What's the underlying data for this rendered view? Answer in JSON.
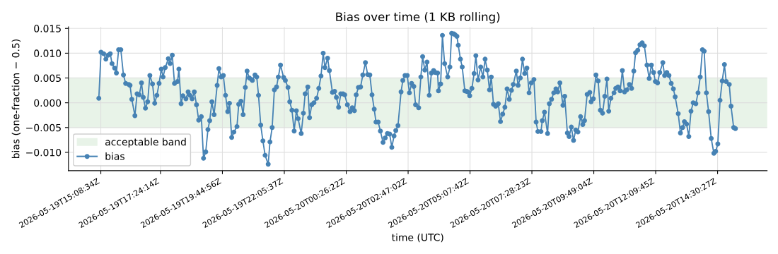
{
  "chart_data": {
    "type": "line",
    "title": "Bias over time (1 KB rolling)",
    "xlabel": "time (UTC)",
    "ylabel": "bias (one-fraction − 0.5)",
    "xlim": [
      "2026-05-19T13:55",
      "2026-05-20T16:23"
    ],
    "ylim": [
      -0.0137,
      0.0153
    ],
    "xticks": [
      {
        "value": "2026-05-19T15:08:34",
        "label": "2026-05-19T15:08:34Z"
      },
      {
        "value": "2026-05-19T17:24:14",
        "label": "2026-05-19T17:24:14Z"
      },
      {
        "value": "2026-05-19T19:44:56",
        "label": "2026-05-19T19:44:56Z"
      },
      {
        "value": "2026-05-19T22:05:37",
        "label": "2026-05-19T22:05:37Z"
      },
      {
        "value": "2026-05-20T00:26:22",
        "label": "2026-05-20T00:26:22Z"
      },
      {
        "value": "2026-05-20T02:47:02",
        "label": "2026-05-20T02:47:02Z"
      },
      {
        "value": "2026-05-20T05:07:42",
        "label": "2026-05-20T05:07:42Z"
      },
      {
        "value": "2026-05-20T07:28:23",
        "label": "2026-05-20T07:28:23Z"
      },
      {
        "value": "2026-05-20T09:49:04",
        "label": "2026-05-20T09:49:04Z"
      },
      {
        "value": "2026-05-20T12:09:45",
        "label": "2026-05-20T12:09:45Z"
      },
      {
        "value": "2026-05-20T14:30:27",
        "label": "2026-05-20T14:30:27Z"
      }
    ],
    "yticks": [
      {
        "value": -0.01,
        "label": "−0.010"
      },
      {
        "value": -0.005,
        "label": "−0.005"
      },
      {
        "value": 0,
        "label": "0.000"
      },
      {
        "value": 0.005,
        "label": "0.005"
      },
      {
        "value": 0.01,
        "label": "0.010"
      },
      {
        "value": 0.015,
        "label": "0.015"
      }
    ],
    "bands": [
      {
        "axis": "y",
        "from": -0.005,
        "to": 0.005,
        "label": "acceptable band",
        "color": "#e8f3e8"
      }
    ],
    "grid": true,
    "legend": "lower left",
    "marker": "circle",
    "line_style": "solid",
    "series": [
      {
        "name": "bias",
        "color": "#4682b4",
        "x": [
          "2026-05-19T15:04",
          "2026-05-19T15:09",
          "2026-05-19T15:15",
          "2026-05-19T15:20",
          "2026-05-19T15:25",
          "2026-05-19T15:30",
          "2026-05-19T15:34",
          "2026-05-19T15:40",
          "2026-05-19T15:44",
          "2026-05-19T15:49",
          "2026-05-19T15:54",
          "2026-05-19T16:00",
          "2026-05-19T16:05",
          "2026-05-19T16:12",
          "2026-05-19T16:15",
          "2026-05-19T16:19",
          "2026-05-19T16:26",
          "2026-05-19T16:31",
          "2026-05-19T16:36",
          "2026-05-19T16:41",
          "2026-05-19T16:45",
          "2026-05-19T16:50",
          "2026-05-19T16:55",
          "2026-05-19T17:00",
          "2026-05-19T17:06",
          "2026-05-19T17:11",
          "2026-05-19T17:16",
          "2026-05-19T17:21",
          "2026-05-19T17:26",
          "2026-05-19T17:30",
          "2026-05-19T17:35",
          "2026-05-19T17:42",
          "2026-05-19T17:46",
          "2026-05-19T17:51",
          "2026-05-19T17:56",
          "2026-05-19T18:03",
          "2026-05-19T18:06",
          "2026-05-19T18:11",
          "2026-05-19T18:15",
          "2026-05-19T18:22",
          "2026-05-19T18:27",
          "2026-05-19T18:31",
          "2026-05-19T18:36",
          "2026-05-19T18:41",
          "2026-05-19T18:46",
          "2026-05-19T18:51",
          "2026-05-19T18:57",
          "2026-05-19T19:02",
          "2026-05-19T19:07",
          "2026-05-19T19:12",
          "2026-05-19T19:16",
          "2026-05-19T19:21",
          "2026-05-19T19:26",
          "2026-05-19T19:33",
          "2026-05-19T19:37",
          "2026-05-19T19:42",
          "2026-05-19T19:47",
          "2026-05-19T19:52",
          "2026-05-19T19:57",
          "2026-05-19T20:01",
          "2026-05-19T20:06",
          "2026-05-19T20:11",
          "2026-05-19T20:18",
          "2026-05-19T20:22",
          "2026-05-19T20:27",
          "2026-05-19T20:32",
          "2026-05-19T20:37",
          "2026-05-19T20:41",
          "2026-05-19T20:46",
          "2026-05-19T20:51",
          "2026-05-19T20:53",
          "2026-05-19T20:59",
          "2026-05-19T21:03",
          "2026-05-19T21:07",
          "2026-05-19T21:12",
          "2026-05-19T21:17",
          "2026-05-19T21:22",
          "2026-05-19T21:29",
          "2026-05-19T21:33",
          "2026-05-19T21:38",
          "2026-05-19T21:43",
          "2026-05-19T21:48",
          "2026-05-19T21:52",
          "2026-05-19T21:57",
          "2026-05-19T22:04",
          "2026-05-19T22:08",
          "2026-05-19T22:14",
          "2026-05-19T22:18",
          "2026-05-19T22:23",
          "2026-05-19T22:28",
          "2026-05-19T22:33",
          "2026-05-19T22:37",
          "2026-05-19T22:44",
          "2026-05-19T22:49",
          "2026-05-19T22:53",
          "2026-05-19T22:59",
          "2026-05-19T23:03",
          "2026-05-19T23:08",
          "2026-05-19T23:13",
          "2026-05-19T23:19",
          "2026-05-19T23:24",
          "2026-05-19T23:29",
          "2026-05-19T23:34",
          "2026-05-19T23:38",
          "2026-05-19T23:44",
          "2026-05-19T23:48",
          "2026-05-19T23:55",
          "2026-05-20T00:00",
          "2026-05-20T00:04",
          "2026-05-20T00:09",
          "2026-05-20T00:14",
          "2026-05-20T00:19",
          "2026-05-20T00:23",
          "2026-05-20T00:29",
          "2026-05-20T00:35",
          "2026-05-20T00:40",
          "2026-05-20T00:45",
          "2026-05-20T00:49",
          "2026-05-20T00:54",
          "2026-05-20T00:59",
          "2026-05-20T01:04",
          "2026-05-20T01:10",
          "2026-05-20T01:15",
          "2026-05-20T01:20",
          "2026-05-20T01:25",
          "2026-05-20T01:30",
          "2026-05-20T01:34",
          "2026-05-20T01:39",
          "2026-05-20T01:44",
          "2026-05-20T01:50",
          "2026-05-20T01:55",
          "2026-05-20T02:00",
          "2026-05-20T02:05",
          "2026-05-20T02:10",
          "2026-05-20T02:15",
          "2026-05-20T02:19",
          "2026-05-20T02:24",
          "2026-05-20T02:31",
          "2026-05-20T02:35",
          "2026-05-20T02:40",
          "2026-05-20T02:45",
          "2026-05-20T02:50",
          "2026-05-20T02:55",
          "2026-05-20T03:00",
          "2026-05-20T03:04",
          "2026-05-20T03:11",
          "2026-05-20T03:16",
          "2026-05-20T03:20",
          "2026-05-20T03:25",
          "2026-05-20T03:30",
          "2026-05-20T03:35",
          "2026-05-20T03:40",
          "2026-05-20T03:45",
          "2026-05-20T03:49",
          "2026-05-20T03:54",
          "2026-05-20T03:56",
          "2026-05-20T04:01",
          "2026-05-20T04:05",
          "2026-05-20T04:10",
          "2026-05-20T04:17",
          "2026-05-20T04:22",
          "2026-05-20T04:26",
          "2026-05-20T04:31",
          "2026-05-20T04:34",
          "2026-05-20T04:38",
          "2026-05-20T04:41",
          "2026-05-20T04:46",
          "2026-05-20T04:50",
          "2026-05-20T04:56",
          "2026-05-20T05:00",
          "2026-05-20T05:03",
          "2026-05-20T05:07",
          "2026-05-20T05:12",
          "2026-05-20T05:17",
          "2026-05-20T05:21",
          "2026-05-20T05:26",
          "2026-05-20T05:32",
          "2026-05-20T05:37",
          "2026-05-20T05:42",
          "2026-05-20T05:47",
          "2026-05-20T05:52",
          "2026-05-20T05:56",
          "2026-05-20T06:01",
          "2026-05-20T06:06",
          "2026-05-20T06:12",
          "2026-05-20T06:17",
          "2026-05-20T06:22",
          "2026-05-20T06:27",
          "2026-05-20T06:32",
          "2026-05-20T06:37",
          "2026-05-20T06:42",
          "2026-05-20T06:46",
          "2026-05-20T06:53",
          "2026-05-20T06:57",
          "2026-05-20T07:02",
          "2026-05-20T07:07",
          "2026-05-20T07:12",
          "2026-05-20T07:17",
          "2026-05-20T07:22",
          "2026-05-20T07:27",
          "2026-05-20T07:33",
          "2026-05-20T07:38",
          "2026-05-20T07:42",
          "2026-05-20T07:49",
          "2026-05-20T07:52",
          "2026-05-20T07:57",
          "2026-05-20T08:04",
          "2026-05-20T08:08",
          "2026-05-20T08:13",
          "2026-05-20T08:18",
          "2026-05-20T08:23",
          "2026-05-20T08:27",
          "2026-05-20T08:32",
          "2026-05-20T08:39",
          "2026-05-20T08:43",
          "2026-05-20T08:49",
          "2026-05-20T08:53",
          "2026-05-20T08:58",
          "2026-05-20T09:03",
          "2026-05-20T09:08",
          "2026-05-20T09:13",
          "2026-05-20T09:19",
          "2026-05-20T09:24",
          "2026-05-20T09:28",
          "2026-05-20T09:34",
          "2026-05-20T09:40",
          "2026-05-20T09:43",
          "2026-05-20T09:48",
          "2026-05-20T09:54",
          "2026-05-20T09:59",
          "2026-05-20T10:04",
          "2026-05-20T10:09",
          "2026-05-20T10:14",
          "2026-05-20T10:19",
          "2026-05-20T10:23",
          "2026-05-20T10:28",
          "2026-05-20T10:35",
          "2026-05-20T10:39",
          "2026-05-20T10:44",
          "2026-05-20T10:49",
          "2026-05-20T10:54",
          "2026-05-20T10:59",
          "2026-05-20T11:04",
          "2026-05-20T11:10",
          "2026-05-20T11:15",
          "2026-05-20T11:20",
          "2026-05-20T11:24",
          "2026-05-20T11:29",
          "2026-05-20T11:34",
          "2026-05-20T11:39",
          "2026-05-20T11:44",
          "2026-05-20T11:50",
          "2026-05-20T11:55",
          "2026-05-20T12:00",
          "2026-05-20T12:05",
          "2026-05-20T12:09",
          "2026-05-20T12:14",
          "2026-05-20T12:19",
          "2026-05-20T12:26",
          "2026-05-20T12:30",
          "2026-05-20T12:35",
          "2026-05-20T12:40",
          "2026-05-20T12:45",
          "2026-05-20T12:50",
          "2026-05-20T12:54",
          "2026-05-20T13:01",
          "2026-05-20T13:06",
          "2026-05-20T13:11",
          "2026-05-20T13:15",
          "2026-05-20T13:20",
          "2026-05-20T13:25",
          "2026-05-20T13:30",
          "2026-05-20T13:35",
          "2026-05-20T13:41",
          "2026-05-20T13:46",
          "2026-05-20T13:51",
          "2026-05-20T13:56",
          "2026-05-20T14:00",
          "2026-05-20T14:05",
          "2026-05-20T14:10",
          "2026-05-20T14:16",
          "2026-05-20T14:22",
          "2026-05-20T14:26",
          "2026-05-20T14:31",
          "2026-05-20T14:36",
          "2026-05-20T14:41",
          "2026-05-20T14:46",
          "2026-05-20T14:50",
          "2026-05-20T14:57",
          "2026-05-20T15:01",
          "2026-05-20T15:07",
          "2026-05-20T15:11"
        ],
        "values": [
          0.0009,
          0.0102,
          0.0099,
          0.0088,
          0.0096,
          0.0099,
          0.0079,
          0.007,
          0.006,
          0.0107,
          0.0107,
          0.0056,
          0.0039,
          0.0037,
          0.0035,
          0.0007,
          -0.0026,
          0.0018,
          0.0016,
          0.004,
          0.0011,
          -0.0011,
          0.0002,
          0.0055,
          0.0038,
          -0.0001,
          0.0015,
          0.0039,
          0.0068,
          0.0052,
          0.0071,
          0.0089,
          0.0079,
          0.0096,
          0.0039,
          0.0043,
          0.0068,
          -0.0002,
          0.0014,
          0.0008,
          0.0022,
          0.0015,
          0.0008,
          0.0022,
          -0.0004,
          -0.0035,
          -0.0028,
          -0.0112,
          -0.0099,
          -0.0054,
          -0.0036,
          0.0002,
          -0.0024,
          0.0035,
          0.0069,
          0.0052,
          0.0055,
          0.0015,
          -0.0018,
          -0.0001,
          -0.007,
          -0.0059,
          -0.0048,
          -0.0003,
          0.0003,
          -0.0024,
          0.0031,
          0.0064,
          0.005,
          0.0047,
          0.0045,
          0.0056,
          0.0052,
          0.0015,
          -0.0045,
          -0.0077,
          -0.0106,
          -0.0124,
          -0.0079,
          -0.005,
          0.0026,
          0.0032,
          0.0052,
          0.0076,
          0.0051,
          0.0045,
          0.0031,
          0.0002,
          -0.0015,
          -0.0057,
          -0.0016,
          -0.0032,
          -0.0062,
          -0.0021,
          0.0018,
          0.0032,
          -0.003,
          -0.0004,
          0.0,
          0.0009,
          0.0029,
          0.0054,
          0.01,
          0.0071,
          0.009,
          0.0065,
          0.0021,
          0.0023,
          0.0011,
          -0.0009,
          0.0018,
          0.0018,
          0.0016,
          -0.0004,
          -0.0018,
          -0.001,
          -0.0016,
          0.0016,
          0.0031,
          0.0032,
          0.0056,
          0.0081,
          0.0057,
          0.0056,
          0.0016,
          -0.0013,
          -0.0039,
          -0.0039,
          -0.0057,
          -0.008,
          -0.0071,
          -0.0062,
          -0.0063,
          -0.009,
          -0.0067,
          -0.0056,
          -0.0046,
          0.0022,
          0.0045,
          0.0055,
          0.0055,
          0.002,
          0.0039,
          0.0033,
          -0.0004,
          -0.001,
          0.0052,
          0.0093,
          0.0066,
          0.0082,
          0.0015,
          0.006,
          0.0065,
          0.0061,
          0.006,
          0.0024,
          0.0038,
          0.0136,
          0.0079,
          0.0052,
          0.0072,
          0.014,
          0.0139,
          0.0137,
          0.0134,
          0.0116,
          0.0088,
          0.0072,
          0.0024,
          0.0023,
          0.0022,
          0.0014,
          0.0029,
          0.0059,
          0.0095,
          0.0046,
          0.0072,
          0.0052,
          0.0088,
          0.0066,
          0.0026,
          0.0052,
          -0.0003,
          -0.0007,
          -0.0002,
          -0.0038,
          -0.0023,
          -0.0009,
          0.0028,
          0.0007,
          0.0025,
          0.0037,
          0.0064,
          0.0035,
          0.005,
          0.0088,
          0.0059,
          0.007,
          0.002,
          0.004,
          0.0047,
          -0.0039,
          -0.0058,
          -0.0058,
          -0.0036,
          -0.0019,
          -0.0062,
          -0.0002,
          0.0007,
          0.002,
          0.0028,
          0.0022,
          0.004,
          -0.0005,
          0.0013,
          -0.0061,
          -0.0068,
          -0.0049,
          -0.0076,
          -0.0055,
          -0.0059,
          -0.0028,
          -0.0044,
          -0.0036,
          0.0017,
          0.0021,
          0.0002,
          0.0008,
          0.0056,
          0.0044,
          -0.0015,
          -0.0021,
          0.0013,
          0.0048,
          -0.0017,
          0.0009,
          0.002,
          0.0029,
          0.0032,
          0.0024,
          0.0065,
          0.0022,
          0.0026,
          0.0037,
          0.0029,
          0.0064,
          0.0101,
          0.0106,
          0.0117,
          0.0121,
          0.0115,
          0.0076,
          0.0049,
          0.0076,
          0.0061,
          0.0043,
          0.004,
          0.0061,
          0.0081,
          0.0055,
          0.0061,
          0.0055,
          0.0039,
          0.0028,
          0.0012,
          -0.0022,
          -0.0061,
          -0.005,
          -0.0038,
          -0.0043,
          -0.0068,
          -0.0017,
          0.0,
          -0.0002,
          0.002,
          0.0052,
          0.0107,
          0.0104,
          0.002,
          -0.0018,
          -0.0072,
          -0.0102,
          -0.0098,
          -0.0083,
          0.0005,
          0.0044,
          0.0077,
          0.0043,
          0.0037,
          -0.0007,
          -0.005,
          -0.0052
        ]
      }
    ]
  }
}
